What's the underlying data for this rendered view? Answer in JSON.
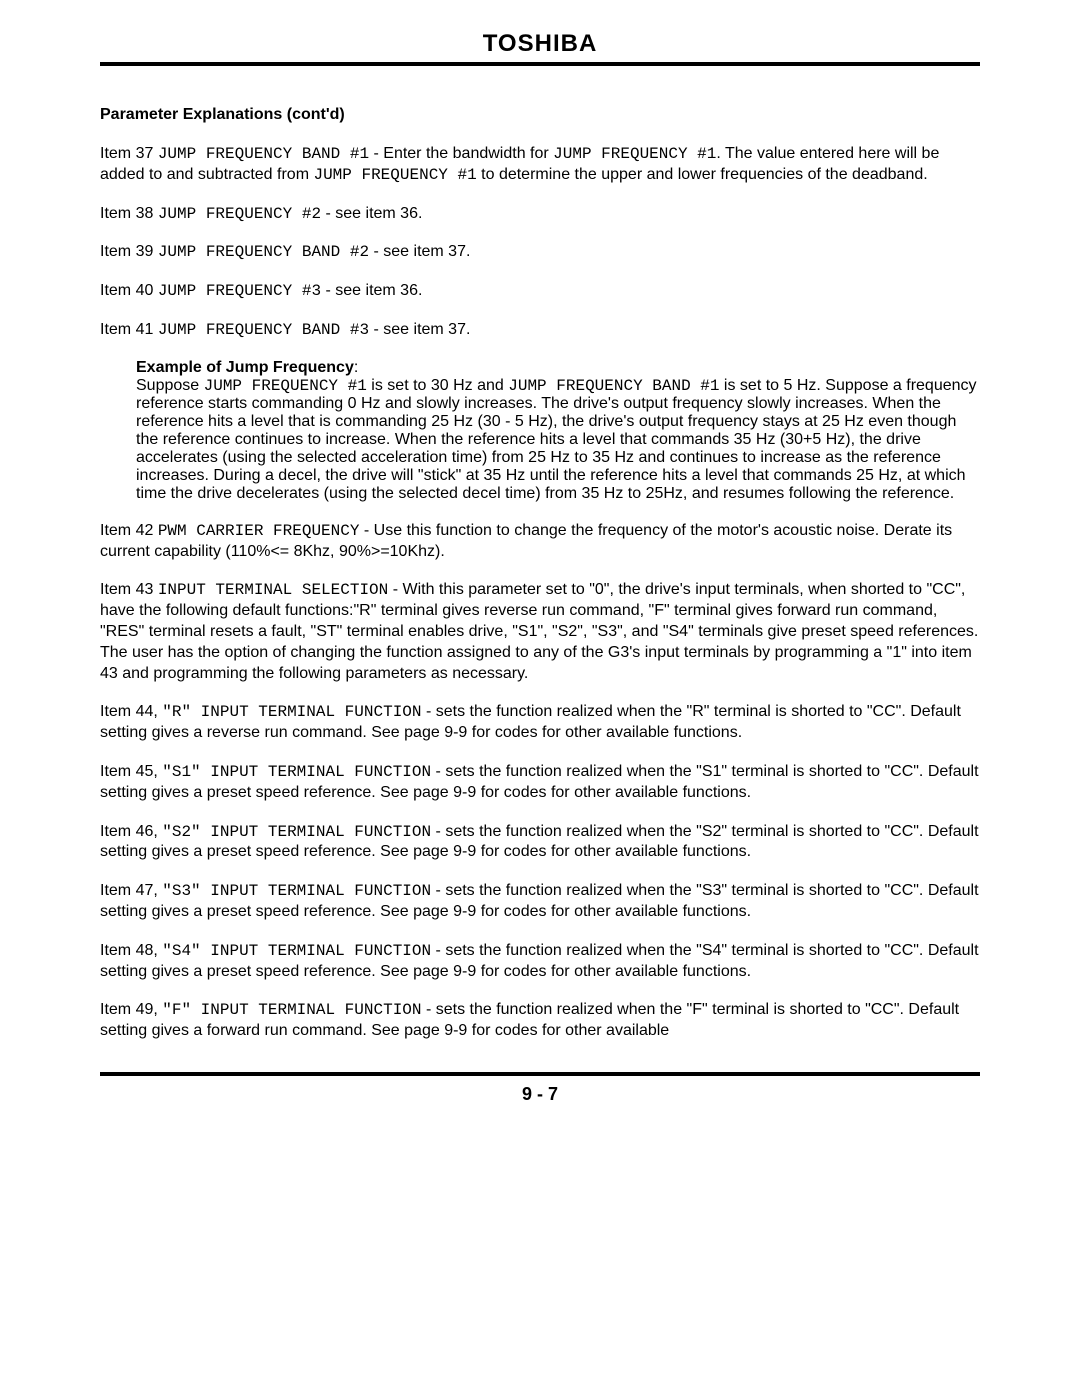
{
  "brand": "TOSHIBA",
  "section_title": "Parameter Explanations (cont'd)",
  "items": {
    "i37": {
      "prefix": "Item 37 ",
      "code": "JUMP FREQUENCY BAND #1",
      "mid": " - Enter the bandwidth for ",
      "code2": "JUMP FREQUENCY #1",
      "mid2": ". The value entered here will be added to and subtracted from ",
      "code3": "JUMP FREQUENCY #1",
      "tail": " to determine the upper and lower frequencies of the deadband."
    },
    "i38": {
      "prefix": "Item 38 ",
      "code": "JUMP FREQUENCY #2",
      "tail": " - see item 36."
    },
    "i39": {
      "prefix": "Item 39 ",
      "code": "JUMP FREQUENCY BAND #2",
      "tail": " - see item 37."
    },
    "i40": {
      "prefix": "Item 40 ",
      "code": "JUMP FREQUENCY #3",
      "tail": " - see item 36."
    },
    "i41": {
      "prefix": "Item 41 ",
      "code": "JUMP FREQUENCY BAND #3",
      "tail": " - see item 37."
    },
    "example": {
      "heading": "Example of Jump Frequency",
      "l1a": "Suppose ",
      "l1code1": "JUMP FREQUENCY #1",
      "l1b": " is set to 30 Hz and ",
      "l1code2": "JUMP FREQUENCY BAND #1",
      "l1c": " is set to 5 Hz. Suppose a frequency reference starts commanding 0 Hz and slowly increases. The drive's output frequency slowly increases. When the reference hits a level that is commanding 25 Hz (30 - 5 Hz), the drive's output frequency stays at 25 Hz even though the reference continues to increase. When the reference hits a level that commands 35 Hz (30+5 Hz), the drive accelerates (using the selected acceleration time) from 25 Hz to 35 Hz and continues to increase as the reference increases. During a decel, the drive will \"stick\" at 35 Hz until the reference hits a level that commands 25 Hz, at which time the drive decelerates (using the selected decel time) from 35 Hz to 25Hz, and resumes following the reference."
    },
    "i42": {
      "prefix": "Item 42 ",
      "code": "PWM CARRIER FREQUENCY",
      "tail": " - Use this function to change the frequency of the motor's acoustic noise. Derate its current capability (110%<= 8Khz,  90%>=10Khz)."
    },
    "i43": {
      "prefix": "Item 43 ",
      "code": "INPUT TERMINAL SELECTION",
      "tail": " - With this parameter set to \"0\", the drive's input terminals, when shorted to \"CC\", have the following default functions:\"R\" terminal gives reverse run command, \"F\" terminal gives forward run command, \"RES\" terminal resets a fault, \"ST\" terminal enables drive, \"S1\", \"S2\", \"S3\", and \"S4\" terminals give preset speed references. The user has the option of changing the function assigned to any of the G3's input terminals by programming a \"1\" into item 43 and programming the following parameters as necessary."
    },
    "i44": {
      "prefix": "Item 44, ",
      "code": "\"R\" INPUT TERMINAL FUNCTION",
      "tail": " - sets the function realized when the \"R\" terminal is shorted to \"CC\". Default setting gives a reverse run command. See page 9-9 for codes for other available functions."
    },
    "i45": {
      "prefix": "Item 45, ",
      "code": "\"S1\" INPUT TERMINAL FUNCTION",
      "tail": " - sets the function realized when the \"S1\" terminal is shorted to \"CC\". Default setting gives a preset speed reference. See page 9-9 for codes for other available functions."
    },
    "i46": {
      "prefix": "Item 46, ",
      "code": "\"S2\" INPUT TERMINAL FUNCTION",
      "tail": " - sets the function realized when the \"S2\" terminal is shorted to \"CC\". Default setting gives a preset speed reference. See page 9-9 for codes for other available functions."
    },
    "i47": {
      "prefix": "Item 47, ",
      "code": "\"S3\" INPUT TERMINAL FUNCTION",
      "tail": " - sets the function realized when the \"S3\" terminal is shorted to \"CC\". Default setting gives a preset speed reference. See page 9-9 for codes for other available functions."
    },
    "i48": {
      "prefix": "Item 48, ",
      "code": "\"S4\" INPUT TERMINAL FUNCTION",
      "tail": " - sets the function realized when the \"S4\" terminal is shorted to \"CC\". Default setting gives a preset speed reference. See page 9-9 for codes for other available functions."
    },
    "i49": {
      "prefix": "Item 49, ",
      "code": "\"F\" INPUT TERMINAL FUNCTION",
      "tail": " - sets the function realized when the \"F\" terminal is shorted to \"CC\". Default setting gives a forward run command. See page 9-9 for codes for other available"
    }
  },
  "page_number": "9 - 7"
}
